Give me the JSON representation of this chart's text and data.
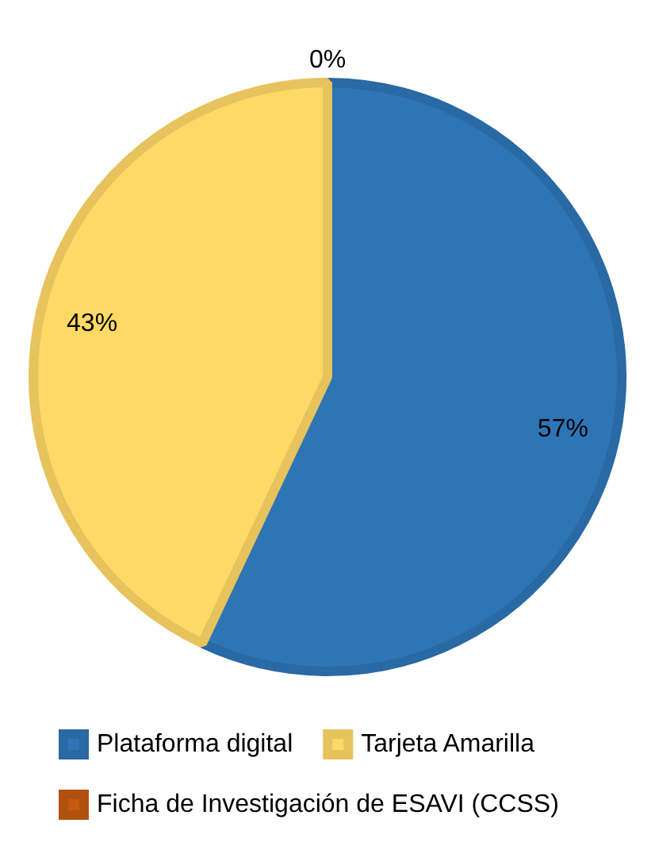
{
  "chart_data": {
    "type": "pie",
    "categories": [
      "Plataforma digital",
      "Tarjeta Amarilla",
      "Ficha de Investigación de ESAVI (CCSS)"
    ],
    "values": [
      57,
      43,
      0
    ],
    "colors": [
      "#2e75b6",
      "#ffd966",
      "#c55a11"
    ],
    "value_labels": [
      "57%",
      "43%",
      "0%"
    ],
    "legend": "bottom"
  }
}
